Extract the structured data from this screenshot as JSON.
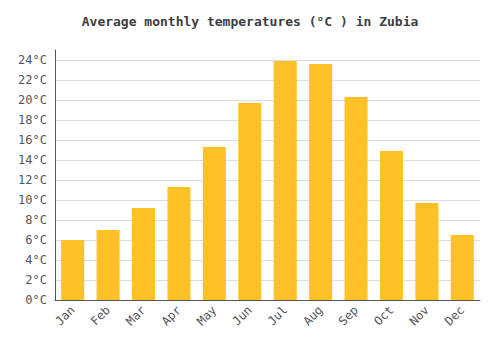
{
  "chart_data": {
    "type": "bar",
    "title": "Average monthly temperatures (°C ) in Zubia",
    "categories": [
      "Jan",
      "Feb",
      "Mar",
      "Apr",
      "May",
      "Jun",
      "Jul",
      "Aug",
      "Sep",
      "Oct",
      "Nov",
      "Dec"
    ],
    "values": [
      6.0,
      7.0,
      9.2,
      11.3,
      15.3,
      19.7,
      23.9,
      23.6,
      20.3,
      14.9,
      9.7,
      6.5
    ],
    "color": "#FFC125",
    "ylim": [
      0,
      25
    ],
    "yticks": [
      {
        "value": 0,
        "label": "0°C"
      },
      {
        "value": 2,
        "label": "2°C"
      },
      {
        "value": 4,
        "label": "4°C"
      },
      {
        "value": 6,
        "label": "6°C"
      },
      {
        "value": 8,
        "label": "8°C"
      },
      {
        "value": 10,
        "label": "10°C"
      },
      {
        "value": 12,
        "label": "12°C"
      },
      {
        "value": 14,
        "label": "14°C"
      },
      {
        "value": 16,
        "label": "16°C"
      },
      {
        "value": 18,
        "label": "18°C"
      },
      {
        "value": 20,
        "label": "20°C"
      },
      {
        "value": 22,
        "label": "22°C"
      },
      {
        "value": 24,
        "label": "24°C"
      }
    ],
    "grid": true
  }
}
